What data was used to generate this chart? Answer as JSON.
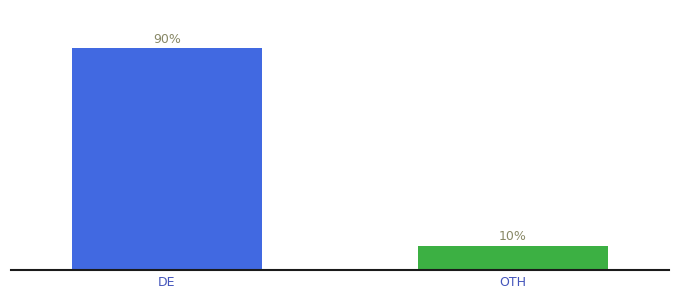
{
  "categories": [
    "DE",
    "OTH"
  ],
  "values": [
    90,
    10
  ],
  "bar_colors": [
    "#4169e1",
    "#3cb043"
  ],
  "label_values": [
    "90%",
    "10%"
  ],
  "background_color": "#ffffff",
  "axis_line_color": "#1a1a1a",
  "text_color": "#888866",
  "xlabel_color": "#4455bb",
  "ylim": [
    0,
    105
  ],
  "bar_width": 0.55,
  "tick_fontsize": 9,
  "label_fontsize": 9,
  "xlim": [
    -0.45,
    1.45
  ]
}
